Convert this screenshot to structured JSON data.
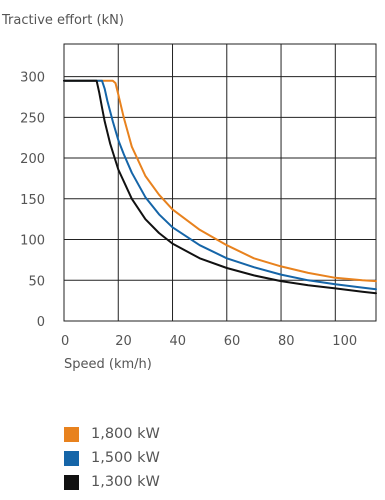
{
  "chart_data": {
    "type": "line",
    "ylabel": "Tractive effort (kN)",
    "xlabel": "Speed (km/h)",
    "xlim": [
      0,
      115
    ],
    "ylim": [
      0,
      340
    ],
    "xticks": [
      0,
      20,
      40,
      60,
      80,
      100
    ],
    "yticks": [
      0,
      50,
      100,
      150,
      200,
      250,
      300
    ],
    "grid": true,
    "legend_position": "bottom-left",
    "series": [
      {
        "name": "1,800 kW",
        "color": "#e8821e",
        "x": [
          0,
          18,
          19,
          20,
          22,
          25,
          30,
          35,
          40,
          50,
          60,
          70,
          80,
          90,
          100,
          110,
          115
        ],
        "y": [
          295,
          295,
          292,
          278,
          250,
          214,
          178,
          155,
          137,
          112,
          93,
          77,
          67,
          59,
          53,
          50,
          49
        ]
      },
      {
        "name": "1,500 kW",
        "color": "#1565a8",
        "x": [
          0,
          14,
          15,
          16,
          18,
          20,
          22,
          25,
          30,
          35,
          40,
          50,
          60,
          70,
          80,
          90,
          100,
          110,
          115
        ],
        "y": [
          295,
          295,
          285,
          270,
          245,
          222,
          205,
          182,
          152,
          131,
          115,
          93,
          77,
          66,
          57,
          50,
          45,
          41,
          39
        ]
      },
      {
        "name": "1,300 kW",
        "color": "#111111",
        "x": [
          0,
          12,
          13,
          14,
          15,
          17,
          20,
          25,
          30,
          35,
          40,
          50,
          60,
          70,
          80,
          90,
          100,
          110,
          115
        ],
        "y": [
          295,
          295,
          280,
          262,
          245,
          218,
          186,
          150,
          125,
          108,
          95,
          77,
          65,
          56,
          49,
          44,
          40,
          36,
          34
        ]
      }
    ]
  }
}
